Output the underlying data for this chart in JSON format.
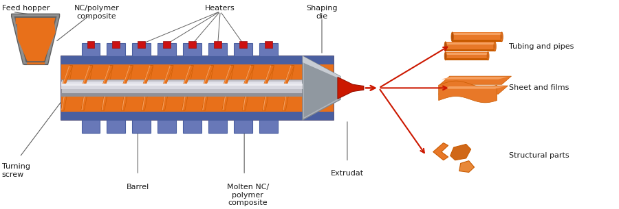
{
  "background_color": "#ffffff",
  "text_color": "#1a1a1a",
  "orange": "#E8701A",
  "orange_dark": "#C85A00",
  "orange_light": "#F5A060",
  "blue_dark": "#4A5FA0",
  "blue_mid": "#6878B8",
  "blue_light": "#A0B0D8",
  "gray_barrel": "#B0B8C8",
  "gray_die": "#A8A8A8",
  "gray_die_dark": "#787878",
  "red": "#CC1800",
  "shaft_gray": "#C0C0C8",
  "shaft_light": "#E0E0E8",
  "labels": {
    "feed_hopper": "Feed hopper",
    "nc_polymer": "NC/polymer\ncomposite",
    "heaters": "Heaters",
    "shaping_die": "Shaping\ndie",
    "turning_screw": "Turning\nscrew",
    "barrel": "Barrel",
    "molten_nc": "Molten NC/\npolymer\ncomposite",
    "extrudat": "Extrudat",
    "tubing": "Tubing and pipes",
    "sheet": "Sheet and films",
    "structural": "Structural parts"
  }
}
